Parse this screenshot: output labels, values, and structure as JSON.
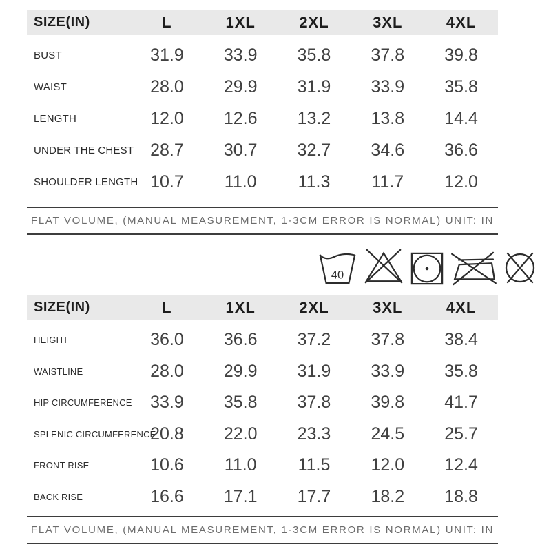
{
  "colors": {
    "header_bg": "#e9e9e9",
    "header_text": "#1d1d1d",
    "value_text": "#414141",
    "note_text": "#6c6c6c",
    "rule_line": "#3d3d3d"
  },
  "tables": [
    {
      "header": [
        "SIZE(IN)",
        "L",
        "1XL",
        "2XL",
        "3XL",
        "4XL"
      ],
      "rows": [
        {
          "label": "BUST",
          "values": [
            "31.9",
            "33.9",
            "35.8",
            "37.8",
            "39.8"
          ]
        },
        {
          "label": "WAIST",
          "values": [
            "28.0",
            "29.9",
            "31.9",
            "33.9",
            "35.8"
          ]
        },
        {
          "label": "LENGTH",
          "values": [
            "12.0",
            "12.6",
            "13.2",
            "13.8",
            "14.4"
          ]
        },
        {
          "label": "UNDER THE CHEST",
          "values": [
            "28.7",
            "30.7",
            "32.7",
            "34.6",
            "36.6"
          ]
        },
        {
          "label": "SHOULDER LENGTH",
          "values": [
            "10.7",
            "11.0",
            "11.3",
            "11.7",
            "12.0"
          ]
        }
      ],
      "note": "FLAT VOLUME, (MANUAL MEASUREMENT, 1-3CM ERROR IS NORMAL) UNIT: IN"
    },
    {
      "header": [
        "SIZE(IN)",
        "L",
        "1XL",
        "2XL",
        "3XL",
        "4XL"
      ],
      "rows": [
        {
          "label": "HEIGHT",
          "values": [
            "36.0",
            "36.6",
            "37.2",
            "37.8",
            "38.4"
          ]
        },
        {
          "label": "WAISTLINE",
          "values": [
            "28.0",
            "29.9",
            "31.9",
            "33.9",
            "35.8"
          ]
        },
        {
          "label": "HIP CIRCUMFERENCE",
          "values": [
            "33.9",
            "35.8",
            "37.8",
            "39.8",
            "41.7"
          ]
        },
        {
          "label": "SPLENIC CIRCUMFERENCE",
          "values": [
            "20.8",
            "22.0",
            "23.3",
            "24.5",
            "25.7"
          ]
        },
        {
          "label": "FRONT RISE",
          "values": [
            "10.6",
            "11.0",
            "11.5",
            "12.0",
            "12.4"
          ]
        },
        {
          "label": "BACK RISE",
          "values": [
            "16.6",
            "17.1",
            "17.7",
            "18.2",
            "18.8"
          ]
        }
      ],
      "note": "FLAT VOLUME, (MANUAL MEASUREMENT, 1-3CM ERROR IS NORMAL) UNIT: IN"
    }
  ],
  "care": {
    "wash_temperature": "40",
    "symbols": [
      {
        "name": "wash-40-icon"
      },
      {
        "name": "do-not-bleach-icon"
      },
      {
        "name": "tumble-dry-low-icon"
      },
      {
        "name": "do-not-iron-icon"
      },
      {
        "name": "do-not-dry-clean-icon"
      }
    ]
  }
}
